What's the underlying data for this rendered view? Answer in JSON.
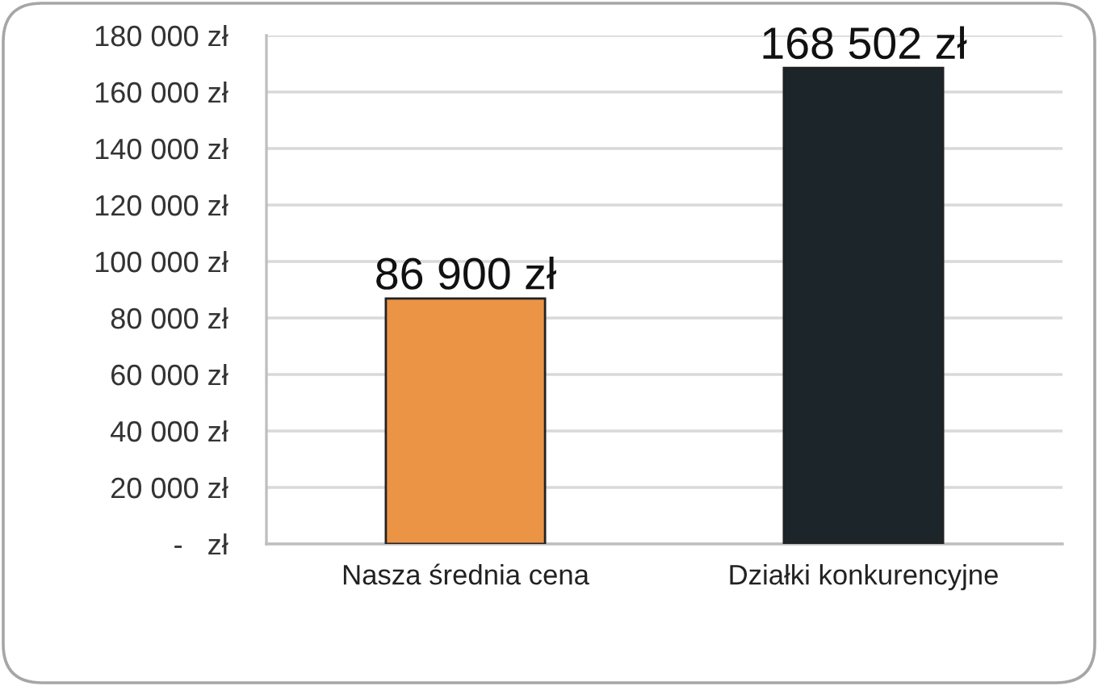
{
  "chart_data": {
    "type": "bar",
    "categories": [
      "Nasza średnia cena",
      "Działki konkurencyjne"
    ],
    "values": [
      86900,
      168502
    ],
    "colors": [
      "#eb9446",
      "#1b252a"
    ],
    "value_labels": [
      "86 900 zł",
      "168 502 zł"
    ],
    "ylim": [
      0,
      180000
    ],
    "yticks": [
      {
        "value": 0,
        "label": "-   zł"
      },
      {
        "value": 20000,
        "label": "20 000 zł"
      },
      {
        "value": 40000,
        "label": "40 000 zł"
      },
      {
        "value": 60000,
        "label": "60 000 zł"
      },
      {
        "value": 80000,
        "label": "80 000 zł"
      },
      {
        "value": 100000,
        "label": "100 000 zł"
      },
      {
        "value": 120000,
        "label": "120 000 zł"
      },
      {
        "value": 140000,
        "label": "140 000 zł"
      },
      {
        "value": 160000,
        "label": "160 000 zł"
      },
      {
        "value": 180000,
        "label": "180 000 zł"
      }
    ],
    "grid": "y"
  }
}
